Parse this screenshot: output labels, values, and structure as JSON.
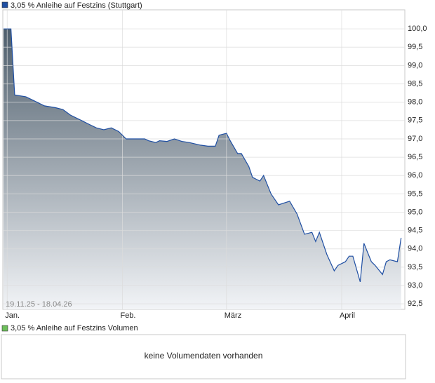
{
  "chart_data": {
    "type": "area",
    "series": [
      {
        "name": "3,05 % Anleihe auf Festzins (Stuttgart)",
        "color": "#1f4fa3",
        "x": [
          0,
          2,
          3,
          6,
          8,
          11,
          14,
          16,
          18,
          21,
          23,
          25,
          27,
          29,
          31,
          33,
          36,
          38,
          39,
          41,
          42,
          44,
          46,
          48,
          50,
          53,
          55,
          57,
          58,
          60,
          61,
          63,
          64,
          66,
          67,
          69,
          70,
          72,
          74,
          77,
          79,
          81,
          83,
          84,
          85,
          87,
          89,
          90,
          92,
          93,
          94,
          96,
          97,
          99,
          100,
          102,
          103,
          104,
          106,
          107
        ],
        "values": [
          100.0,
          100.0,
          98.2,
          98.15,
          98.05,
          97.9,
          97.85,
          97.8,
          97.65,
          97.5,
          97.4,
          97.3,
          97.25,
          97.3,
          97.2,
          97.0,
          97.0,
          97.0,
          96.95,
          96.9,
          96.95,
          96.93,
          97.0,
          96.93,
          96.9,
          96.83,
          96.8,
          96.8,
          97.1,
          97.15,
          96.95,
          96.6,
          96.6,
          96.25,
          95.95,
          95.85,
          96.0,
          95.5,
          95.2,
          95.3,
          94.95,
          94.4,
          94.45,
          94.2,
          94.45,
          93.85,
          93.4,
          93.55,
          93.65,
          93.8,
          93.8,
          93.1,
          94.15,
          93.65,
          93.55,
          93.3,
          93.65,
          93.7,
          93.65,
          94.3
        ]
      }
    ],
    "date_range": "19.11.25 - 18.04.26",
    "xlim": [
      0,
      108
    ],
    "xticks": [
      {
        "value": 1,
        "label": "Jan."
      },
      {
        "value": 32,
        "label": "Feb."
      },
      {
        "value": 60,
        "label": "März"
      },
      {
        "value": 91,
        "label": "April"
      }
    ],
    "ylim": [
      92.35,
      100.52
    ],
    "yticks": [
      {
        "value": 92.5,
        "label": "92,5"
      },
      {
        "value": 93,
        "label": "93,0"
      },
      {
        "value": 93.5,
        "label": "93,5"
      },
      {
        "value": 94,
        "label": "94,0"
      },
      {
        "value": 94.5,
        "label": "94,5"
      },
      {
        "value": 95,
        "label": "95,0"
      },
      {
        "value": 95.5,
        "label": "95,5"
      },
      {
        "value": 96,
        "label": "96,0"
      },
      {
        "value": 96.5,
        "label": "96,5"
      },
      {
        "value": 97,
        "label": "97,0"
      },
      {
        "value": 97.5,
        "label": "97,5"
      },
      {
        "value": 98,
        "label": "98,0"
      },
      {
        "value": 98.5,
        "label": "98,5"
      },
      {
        "value": 99,
        "label": "99,0"
      },
      {
        "value": 99.5,
        "label": "99,5"
      },
      {
        "value": 100,
        "label": "100,0"
      }
    ],
    "grid": true
  },
  "volume": {
    "legend": "3,05 % Anleihe auf Festzins Volumen",
    "color": "#6dbf5a",
    "message": "keine Volumendaten vorhanden"
  }
}
